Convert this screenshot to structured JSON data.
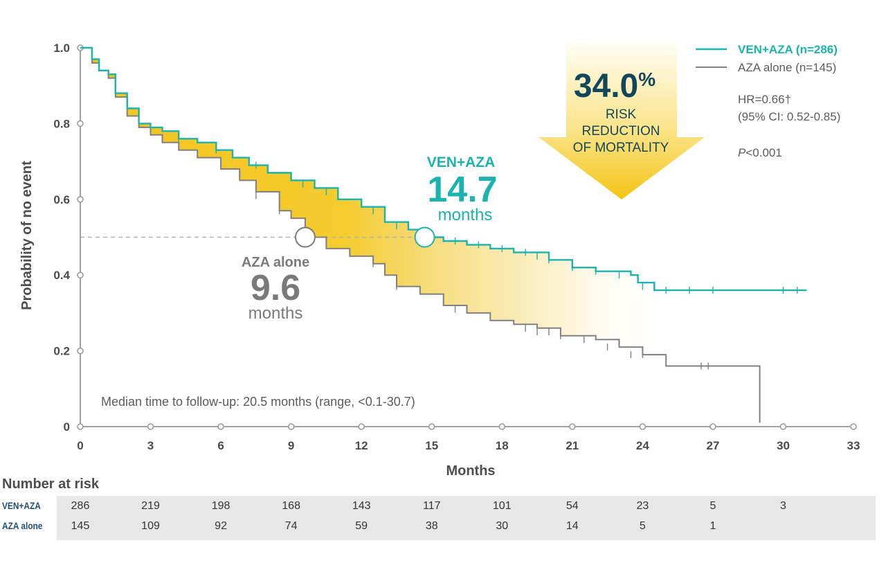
{
  "chart_data": {
    "type": "line",
    "xlabel": "Months",
    "ylabel": "Probability of no event",
    "xlim": [
      0,
      33
    ],
    "ylim": [
      0,
      1.0
    ],
    "x_ticks": [
      0,
      3,
      6,
      9,
      12,
      15,
      18,
      21,
      24,
      27,
      30,
      33
    ],
    "y_ticks": [
      {
        "value": 0,
        "label": "0"
      },
      {
        "value": 0.2,
        "label": "0.2"
      },
      {
        "value": 0.4,
        "label": "0.4"
      },
      {
        "value": 0.6,
        "label": "0.6"
      },
      {
        "value": 0.8,
        "label": "0.8"
      },
      {
        "value": 1.0,
        "label": "1.0"
      }
    ],
    "median_line_y": 0.5,
    "series": [
      {
        "name": "VEN+AZA",
        "color": "#1bb3ad",
        "points": [
          [
            0,
            1.0
          ],
          [
            0.5,
            0.97
          ],
          [
            0.8,
            0.94
          ],
          [
            1.2,
            0.93
          ],
          [
            1.5,
            0.88
          ],
          [
            2.0,
            0.84
          ],
          [
            2.5,
            0.8
          ],
          [
            3.0,
            0.79
          ],
          [
            3.5,
            0.78
          ],
          [
            4.2,
            0.76
          ],
          [
            5.0,
            0.75
          ],
          [
            5.8,
            0.73
          ],
          [
            6.5,
            0.71
          ],
          [
            7.2,
            0.69
          ],
          [
            8.0,
            0.67
          ],
          [
            9.0,
            0.65
          ],
          [
            10.0,
            0.63
          ],
          [
            11.0,
            0.6
          ],
          [
            12.0,
            0.58
          ],
          [
            13.0,
            0.54
          ],
          [
            14.0,
            0.52
          ],
          [
            14.7,
            0.5
          ],
          [
            15.5,
            0.49
          ],
          [
            16.5,
            0.48
          ],
          [
            17.5,
            0.47
          ],
          [
            18.5,
            0.46
          ],
          [
            20.0,
            0.44
          ],
          [
            21.0,
            0.42
          ],
          [
            22.0,
            0.41
          ],
          [
            23.5,
            0.4
          ],
          [
            23.8,
            0.38
          ],
          [
            24.5,
            0.36
          ],
          [
            31.0,
            0.36
          ]
        ],
        "censors": [
          [
            4.2,
            0.76
          ],
          [
            5.8,
            0.73
          ],
          [
            7.5,
            0.69
          ],
          [
            9.5,
            0.64
          ],
          [
            10.5,
            0.62
          ],
          [
            12.5,
            0.57
          ],
          [
            13.5,
            0.53
          ],
          [
            15.0,
            0.5
          ],
          [
            16.0,
            0.49
          ],
          [
            17.0,
            0.48
          ],
          [
            18.0,
            0.47
          ],
          [
            19.0,
            0.46
          ],
          [
            19.5,
            0.45
          ],
          [
            20.0,
            0.44
          ],
          [
            21.0,
            0.42
          ],
          [
            22.0,
            0.41
          ],
          [
            23.0,
            0.4
          ],
          [
            24.0,
            0.37
          ],
          [
            25.0,
            0.36
          ],
          [
            26.0,
            0.36
          ],
          [
            27.0,
            0.36
          ],
          [
            30.0,
            0.36
          ],
          [
            30.6,
            0.36
          ]
        ]
      },
      {
        "name": "AZA alone",
        "color": "#808080",
        "points": [
          [
            0,
            1.0
          ],
          [
            0.5,
            0.96
          ],
          [
            0.8,
            0.94
          ],
          [
            1.2,
            0.92
          ],
          [
            1.5,
            0.87
          ],
          [
            2.0,
            0.82
          ],
          [
            2.5,
            0.79
          ],
          [
            3.0,
            0.77
          ],
          [
            3.5,
            0.75
          ],
          [
            4.2,
            0.73
          ],
          [
            5.0,
            0.71
          ],
          [
            6.0,
            0.68
          ],
          [
            6.8,
            0.65
          ],
          [
            7.5,
            0.62
          ],
          [
            8.5,
            0.57
          ],
          [
            9.0,
            0.55
          ],
          [
            9.6,
            0.5
          ],
          [
            10.5,
            0.47
          ],
          [
            11.5,
            0.45
          ],
          [
            12.5,
            0.43
          ],
          [
            13.0,
            0.4
          ],
          [
            13.5,
            0.37
          ],
          [
            14.5,
            0.35
          ],
          [
            15.5,
            0.32
          ],
          [
            16.5,
            0.3
          ],
          [
            17.5,
            0.28
          ],
          [
            18.5,
            0.27
          ],
          [
            19.5,
            0.26
          ],
          [
            20.5,
            0.24
          ],
          [
            22.0,
            0.23
          ],
          [
            23.0,
            0.21
          ],
          [
            24.0,
            0.19
          ],
          [
            25.0,
            0.16
          ],
          [
            29.0,
            0.16
          ],
          [
            29.0,
            0.01
          ]
        ],
        "censors": [
          [
            7.5,
            0.61
          ],
          [
            8.5,
            0.57
          ],
          [
            12.5,
            0.43
          ],
          [
            13.5,
            0.37
          ],
          [
            16.0,
            0.31
          ],
          [
            19.0,
            0.26
          ],
          [
            19.5,
            0.25
          ],
          [
            20.0,
            0.25
          ],
          [
            20.5,
            0.24
          ],
          [
            21.5,
            0.23
          ],
          [
            22.5,
            0.21
          ],
          [
            23.5,
            0.19
          ],
          [
            24.0,
            0.19
          ],
          [
            26.5,
            0.16
          ],
          [
            26.8,
            0.16
          ]
        ]
      }
    ],
    "legend": [
      {
        "label": "VEN+AZA (n=286)",
        "color": "#1bb3ad"
      },
      {
        "label": "AZA alone (n=145)",
        "color": "#808080"
      }
    ],
    "hr_text": "HR=0.66†",
    "ci_text": "(95% CI: 0.52-0.85)",
    "p_letter": "P",
    "p_rest": "<0.001",
    "arrow_percent": "34.0",
    "arrow_percent_sign": "%",
    "arrow_line1": "RISK",
    "arrow_line2": "REDUCTION",
    "arrow_line3": "OF MORTALITY",
    "ven_median_label": "VEN+AZA",
    "ven_median_value": "14.7",
    "ven_median_x": 14.7,
    "ven_median_unit": "months",
    "aza_median_label": "AZA alone",
    "aza_median_value": "9.6",
    "aza_median_x": 9.6,
    "aza_median_unit": "months",
    "followup_note": "Median time to follow-up: 20.5 months (range, <0.1-30.7)"
  },
  "risk_table": {
    "title": "Number at risk",
    "columns": [
      0,
      3,
      6,
      9,
      12,
      15,
      18,
      21,
      24,
      27,
      30
    ],
    "rows": [
      {
        "label": "VEN+AZA",
        "values": [
          "286",
          "219",
          "198",
          "168",
          "143",
          "117",
          "101",
          "54",
          "23",
          "5",
          "3"
        ]
      },
      {
        "label": "AZA alone",
        "values": [
          "145",
          "109",
          "92",
          "74",
          "59",
          "38",
          "30",
          "14",
          "5",
          "1",
          ""
        ]
      }
    ]
  }
}
